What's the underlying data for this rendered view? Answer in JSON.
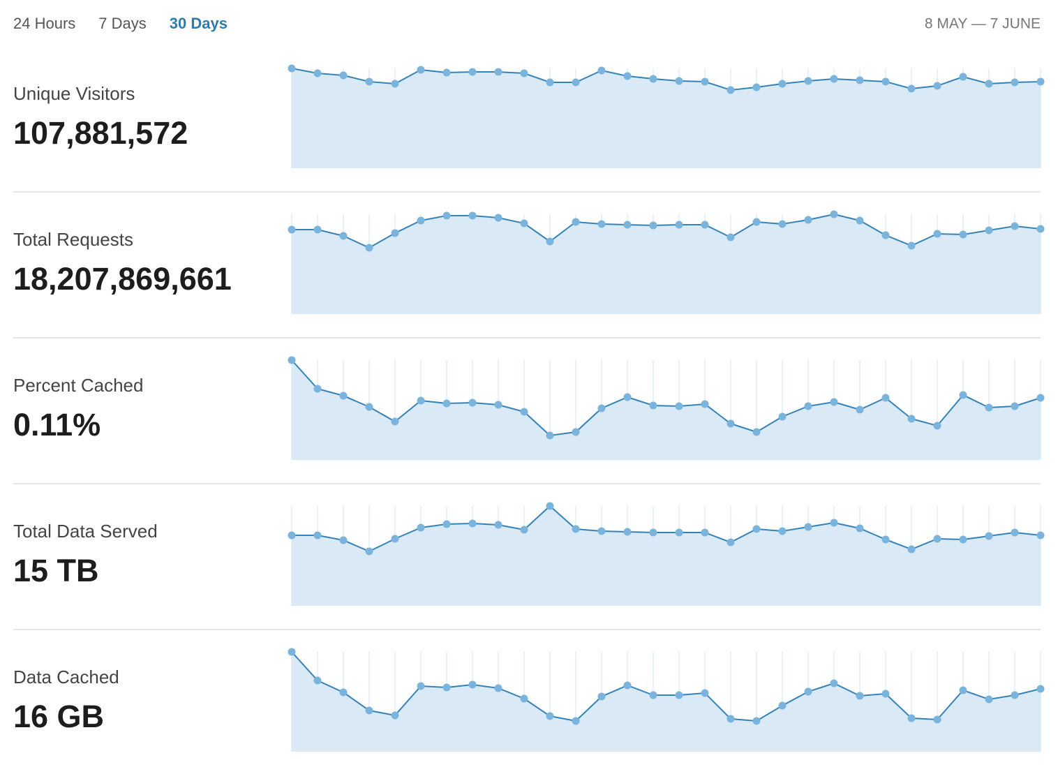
{
  "tabs": [
    "24 Hours",
    "7 Days",
    "30 Days"
  ],
  "active_tab": 2,
  "date_range": "8 MAY — 7 JUNE",
  "line_color": "#3582b8",
  "point_color": "#7ab3dc",
  "area_color": "#d9e9f6",
  "metrics": [
    {
      "label": "Unique Visitors",
      "value": "107,881,572",
      "values": [
        143,
        136,
        133,
        124,
        121,
        141,
        137,
        138,
        138,
        136,
        123,
        123,
        140,
        132,
        128,
        125,
        124,
        112,
        116,
        121,
        125,
        128,
        126,
        124,
        114,
        118,
        131,
        121,
        123,
        124
      ]
    },
    {
      "label": "Total Requests",
      "value": "18,207,869,661",
      "values": [
        121,
        121,
        112,
        95,
        116,
        134,
        141,
        141,
        138,
        130,
        104,
        132,
        129,
        128,
        127,
        128,
        128,
        110,
        132,
        129,
        135,
        143,
        134,
        113,
        98,
        115,
        114,
        120,
        126,
        122
      ]
    },
    {
      "label": "Percent Cached",
      "value": "0.11%",
      "values": [
        143,
        102,
        92,
        76,
        55,
        85,
        81,
        82,
        79,
        69,
        35,
        40,
        74,
        90,
        78,
        77,
        80,
        52,
        40,
        62,
        77,
        83,
        72,
        89,
        59,
        49,
        93,
        75,
        77,
        89
      ]
    },
    {
      "label": "Total Data Served",
      "value": "15 TB",
      "values": [
        101,
        101,
        94,
        78,
        96,
        112,
        117,
        118,
        116,
        109,
        143,
        110,
        107,
        106,
        105,
        105,
        105,
        91,
        110,
        107,
        113,
        119,
        111,
        95,
        81,
        96,
        95,
        100,
        105,
        101
      ]
    },
    {
      "label": "Data Cached",
      "value": "16 GB",
      "values": [
        143,
        102,
        85,
        59,
        52,
        94,
        92,
        96,
        91,
        76,
        51,
        44,
        79,
        95,
        81,
        81,
        84,
        47,
        44,
        66,
        86,
        98,
        80,
        83,
        48,
        46,
        88,
        75,
        81,
        90
      ]
    }
  ]
}
